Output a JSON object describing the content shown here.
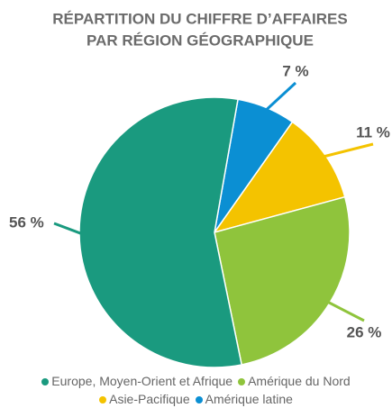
{
  "chart_data": {
    "type": "pie",
    "title": [
      "RÉPARTITION DU CHIFFRE D’AFFAIRES",
      "PAR RÉGION GÉOGRAPHIQUE"
    ],
    "categories": [
      "Europe, Moyen-Orient et Afrique",
      "Amérique du Nord",
      "Asie-Pacifique",
      "Amérique latine"
    ],
    "values": [
      56,
      26,
      11,
      7
    ],
    "value_labels": [
      "56 %",
      "26 %",
      "11 %",
      "7 %"
    ],
    "colors": [
      "#1a9a7f",
      "#8fc43c",
      "#f4c300",
      "#0b8fd3"
    ]
  }
}
